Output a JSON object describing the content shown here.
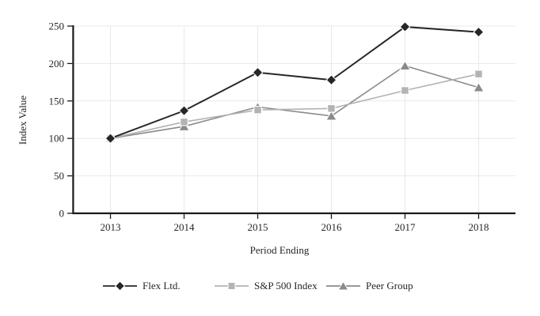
{
  "chart_data": {
    "type": "line",
    "title": "",
    "categories": [
      "2013",
      "2014",
      "2015",
      "2016",
      "2017",
      "2018"
    ],
    "series": [
      {
        "name": "Flex Ltd.",
        "marker": "diamond",
        "color": "#262626",
        "values": [
          100,
          137,
          188,
          178,
          249,
          242
        ]
      },
      {
        "name": "S&P 500 Index",
        "marker": "square",
        "color": "#b3b3b3",
        "values": [
          100,
          122,
          138,
          140,
          164,
          186
        ]
      },
      {
        "name": "Peer Group",
        "marker": "triangle",
        "color": "#8a8a8a",
        "values": [
          100,
          116,
          142,
          130,
          197,
          168
        ]
      }
    ],
    "xlabel": "Period Ending",
    "ylabel": "Index Value",
    "ylim": [
      0,
      250
    ],
    "yticks": [
      0,
      50,
      100,
      150,
      200,
      250
    ],
    "grid": true,
    "legend_position": "bottom",
    "colors": {
      "axis": "#1a1a1a",
      "gridline": "#e8e8e8",
      "text": "#262626",
      "background": "#ffffff"
    }
  }
}
